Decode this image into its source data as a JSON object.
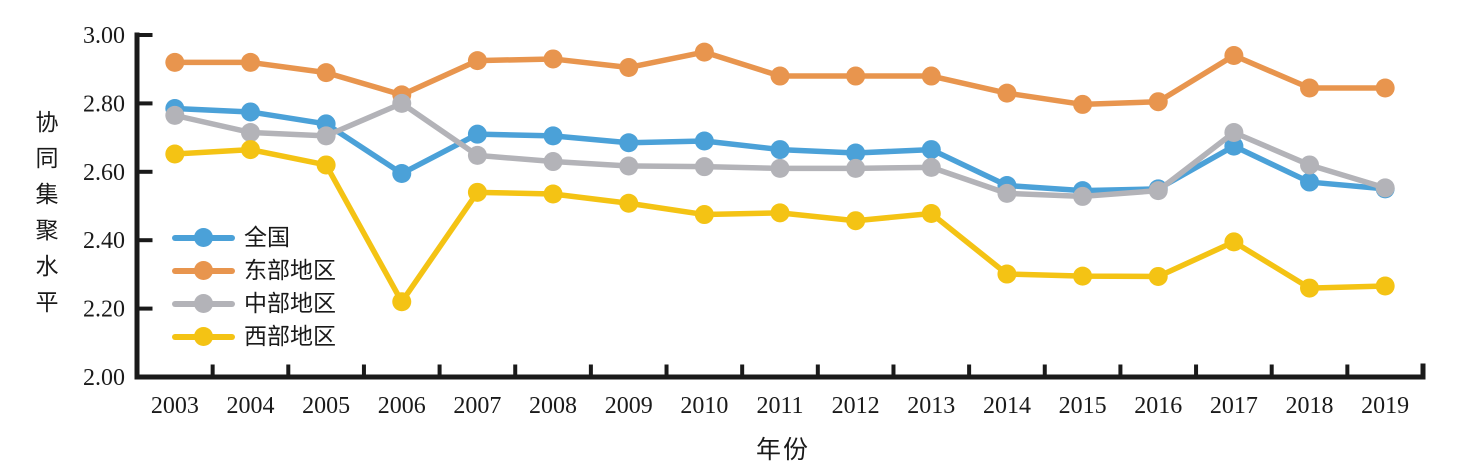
{
  "figure": {
    "background": "#ffffff",
    "axis_color": "#1a1a1a",
    "text_color": "#1a1a1a"
  },
  "chart_data": {
    "type": "line",
    "title": "",
    "xlabel": "年份",
    "ylabel": "协同集聚水平",
    "x": [
      "2003",
      "2004",
      "2005",
      "2006",
      "2007",
      "2008",
      "2009",
      "2010",
      "2011",
      "2012",
      "2013",
      "2014",
      "2015",
      "2016",
      "2017",
      "2018",
      "2019"
    ],
    "ylim": [
      2.0,
      3.0
    ],
    "yticks": [
      "3.00",
      "2.80",
      "2.60",
      "2.40",
      "2.20",
      "2.00"
    ],
    "ytick_values": [
      3.0,
      2.8,
      2.6,
      2.4,
      2.2,
      2.0
    ],
    "grid": false,
    "legend_position": "inside-left",
    "series": [
      {
        "key": "national",
        "name": "全国",
        "color": "#4BA1D8",
        "values": [
          2.785,
          2.775,
          2.74,
          2.595,
          2.71,
          2.705,
          2.685,
          2.69,
          2.665,
          2.655,
          2.665,
          2.56,
          2.545,
          2.55,
          2.675,
          2.57,
          2.55
        ]
      },
      {
        "key": "eastern",
        "name": "东部地区",
        "color": "#E8954E",
        "values": [
          2.92,
          2.92,
          2.89,
          2.825,
          2.925,
          2.93,
          2.905,
          2.95,
          2.88,
          2.88,
          2.88,
          2.83,
          2.797,
          2.805,
          2.94,
          2.845,
          2.845
        ]
      },
      {
        "key": "central",
        "name": "中部地区",
        "color": "#B3B3B8",
        "values": [
          2.765,
          2.715,
          2.705,
          2.8,
          2.648,
          2.63,
          2.617,
          2.615,
          2.61,
          2.61,
          2.613,
          2.537,
          2.528,
          2.545,
          2.715,
          2.62,
          2.553
        ]
      },
      {
        "key": "western",
        "name": "西部地区",
        "color": "#F4C314",
        "values": [
          2.652,
          2.665,
          2.62,
          2.22,
          2.54,
          2.535,
          2.508,
          2.475,
          2.48,
          2.457,
          2.478,
          2.301,
          2.295,
          2.294,
          2.395,
          2.26,
          2.266
        ]
      }
    ]
  }
}
